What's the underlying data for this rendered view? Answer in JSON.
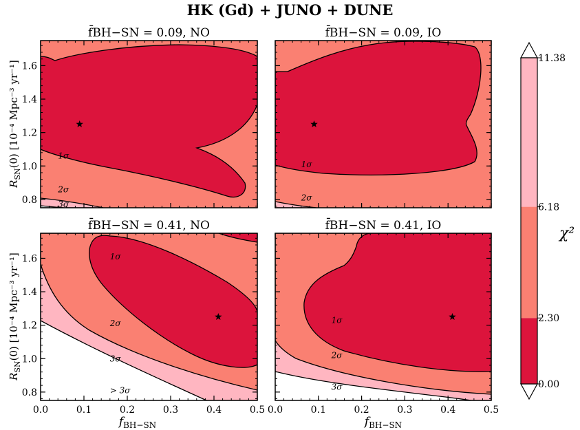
{
  "title": "HK (Gd) + JUNO + DUNE",
  "xlabel_main": "f",
  "xlabel_sub": "BH−SN",
  "ylabel_main": "R",
  "ylabel_sub": "SN",
  "ylabel_rest": "(0) [10⁻⁴ Mpc⁻³ yr⁻¹]",
  "colorbar": {
    "label": "χ²",
    "ticks": [
      "0.00",
      "2.30",
      "6.18",
      "11.38"
    ],
    "bands": [
      {
        "from": 0.0,
        "to": 2.3,
        "color": "#dc143c",
        "name": "1σ"
      },
      {
        "from": 2.3,
        "to": 6.18,
        "color": "#fa8072",
        "name": "2σ"
      },
      {
        "from": 6.18,
        "to": 11.38,
        "color": "#ffb6c1",
        "name": "3σ"
      }
    ],
    "above_color": "#ffffff"
  },
  "chart_data": [
    {
      "type": "contour",
      "title": "f̄BH−SN = 0.09, NO",
      "title_value": "0.09",
      "ordering": "NO",
      "best_fit": {
        "x": 0.09,
        "y": 1.25
      },
      "xlim": [
        0.0,
        0.5
      ],
      "ylim": [
        0.75,
        1.75
      ],
      "x_ticks": [
        "0.0",
        "0.1",
        "0.2",
        "0.3",
        "0.4",
        "0.5"
      ],
      "y_ticks": [
        "0.8",
        "1.0",
        "1.2",
        "1.4",
        "1.6"
      ],
      "contour_labels": [
        {
          "text": "1σ",
          "x": 0.04,
          "y": 1.06
        },
        {
          "text": "2σ",
          "x": 0.04,
          "y": 0.86
        },
        {
          "text": "3σ",
          "x": 0.04,
          "y": 0.77
        }
      ]
    },
    {
      "type": "contour",
      "title": "f̄BH−SN = 0.09, IO",
      "title_value": "0.09",
      "ordering": "IO",
      "best_fit": {
        "x": 0.09,
        "y": 1.25
      },
      "xlim": [
        0.0,
        0.5
      ],
      "ylim": [
        0.75,
        1.75
      ],
      "x_ticks": [
        "0.0",
        "0.1",
        "0.2",
        "0.3",
        "0.4",
        "0.5"
      ],
      "y_ticks": [
        "0.8",
        "1.0",
        "1.2",
        "1.4",
        "1.6"
      ],
      "contour_labels": [
        {
          "text": "1σ",
          "x": 0.06,
          "y": 1.01
        },
        {
          "text": "2σ",
          "x": 0.06,
          "y": 0.81
        }
      ]
    },
    {
      "type": "contour",
      "title": "f̄BH−SN = 0.41, NO",
      "title_value": "0.41",
      "ordering": "NO",
      "best_fit": {
        "x": 0.41,
        "y": 1.25
      },
      "xlim": [
        0.0,
        0.5
      ],
      "ylim": [
        0.75,
        1.75
      ],
      "x_ticks": [
        "0.0",
        "0.1",
        "0.2",
        "0.3",
        "0.4",
        "0.5"
      ],
      "y_ticks": [
        "0.8",
        "1.0",
        "1.2",
        "1.4",
        "1.6"
      ],
      "contour_labels": [
        {
          "text": "1σ",
          "x": 0.16,
          "y": 1.61
        },
        {
          "text": "2σ",
          "x": 0.16,
          "y": 1.21
        },
        {
          "text": "3σ",
          "x": 0.16,
          "y": 1.0
        },
        {
          "text": "> 3σ",
          "x": 0.16,
          "y": 0.81
        }
      ]
    },
    {
      "type": "contour",
      "title": "f̄BH−SN = 0.41, IO",
      "title_value": "0.41",
      "ordering": "IO",
      "best_fit": {
        "x": 0.41,
        "y": 1.25
      },
      "xlim": [
        0.0,
        0.5
      ],
      "ylim": [
        0.75,
        1.75
      ],
      "x_ticks": [
        "0.0",
        "0.1",
        "0.2",
        "0.3",
        "0.4",
        "0.5"
      ],
      "y_ticks": [
        "0.8",
        "1.0",
        "1.2",
        "1.4",
        "1.6"
      ],
      "contour_labels": [
        {
          "text": "1σ",
          "x": 0.13,
          "y": 1.23
        },
        {
          "text": "2σ",
          "x": 0.13,
          "y": 1.02
        },
        {
          "text": "3σ",
          "x": 0.13,
          "y": 0.83
        }
      ]
    }
  ]
}
